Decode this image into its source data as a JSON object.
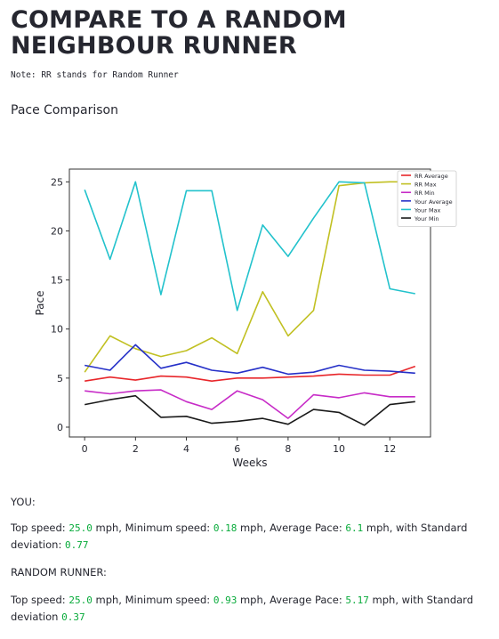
{
  "header": {
    "title": "COMPARE TO A RANDOM NEIGHBOUR RUNNER",
    "note": "Note: RR stands for Random Runner",
    "subtitle": "Pace Comparison"
  },
  "chart_data": {
    "type": "line",
    "x": [
      0,
      1,
      2,
      3,
      4,
      5,
      6,
      7,
      8,
      9,
      10,
      11,
      12,
      13
    ],
    "xlabel": "Weeks",
    "ylabel": "Pace",
    "xlim": [
      -0.6,
      13.6
    ],
    "ylim": [
      -1,
      26.3
    ],
    "xticks": [
      "0",
      "2",
      "4",
      "6",
      "8",
      "10",
      "12"
    ],
    "yticks": [
      "0",
      "5",
      "10",
      "15",
      "20",
      "25"
    ],
    "legend_position": "top-right",
    "grid": false,
    "series": [
      {
        "name": "RR Average",
        "color": "#e8262a",
        "values": [
          4.7,
          5.1,
          4.8,
          5.2,
          5.1,
          4.7,
          5.0,
          5.0,
          5.1,
          5.2,
          5.4,
          5.3,
          5.3,
          6.2
        ]
      },
      {
        "name": "RR Max",
        "color": "#c1c022",
        "values": [
          5.6,
          9.3,
          8.0,
          7.2,
          7.8,
          9.1,
          7.5,
          13.8,
          9.3,
          11.9,
          24.6,
          24.9,
          25.0,
          25.0
        ]
      },
      {
        "name": "RR Min",
        "color": "#c72bc7",
        "values": [
          3.7,
          3.4,
          3.7,
          3.8,
          2.6,
          1.8,
          3.7,
          2.8,
          0.9,
          3.3,
          3.0,
          3.5,
          3.1,
          3.1
        ]
      },
      {
        "name": "Your Average",
        "color": "#2530c8",
        "values": [
          6.3,
          5.8,
          8.4,
          6.0,
          6.6,
          5.8,
          5.5,
          6.1,
          5.4,
          5.6,
          6.3,
          5.8,
          5.7,
          5.5
        ]
      },
      {
        "name": "Your Max",
        "color": "#22c2cc",
        "values": [
          24.2,
          17.1,
          25.0,
          13.5,
          24.1,
          24.1,
          11.9,
          20.6,
          17.4,
          21.3,
          25.0,
          24.9,
          14.1,
          13.6
        ]
      },
      {
        "name": "Your Min",
        "color": "#1a1a1a",
        "values": [
          2.3,
          2.8,
          3.2,
          1.0,
          1.1,
          0.4,
          0.6,
          0.9,
          0.3,
          1.8,
          1.5,
          0.2,
          2.3,
          2.6
        ]
      }
    ]
  },
  "you": {
    "heading": "YOU:",
    "top_label": "Top speed:",
    "top_value": "25.0",
    "min_label": "mph, Minimum speed:",
    "min_value": "0.18",
    "avg_label": "mph, Average Pace:",
    "avg_value": "6.1",
    "std_label": "mph, with Standard deviation:",
    "std_value": "0.77"
  },
  "random_runner": {
    "heading": "RANDOM RUNNER:",
    "top_label": "Top speed:",
    "top_value": "25.0",
    "min_label": "mph, Minimum speed:",
    "min_value": "0.93",
    "avg_label": "mph, Average Pace:",
    "avg_value": "5.17",
    "std_label": "mph, with Standard deviation",
    "std_value": "0.37"
  }
}
